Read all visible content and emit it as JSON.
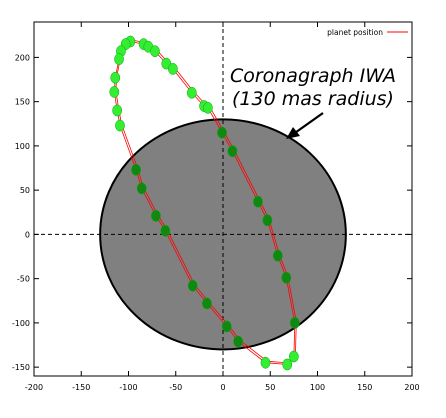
{
  "chart_data": {
    "type": "scatter",
    "title": "",
    "xlabel": "",
    "ylabel": "",
    "xlim": [
      -200,
      200
    ],
    "ylim": [
      -160,
      240
    ],
    "x_ticks": [
      -200,
      -150,
      -100,
      -50,
      0,
      50,
      100,
      150,
      200
    ],
    "y_ticks": [
      -150,
      -100,
      -50,
      0,
      50,
      100,
      150,
      200
    ],
    "grid": false,
    "legend_position": "top-right",
    "legend": [
      "planet position"
    ],
    "annotation": [
      "Coronagraph IWA",
      "(130 mas radius)"
    ],
    "mask": {
      "center": [
        0,
        0
      ],
      "radius": 130,
      "color": "#808080"
    },
    "colors": {
      "orbit_line": "#ff0000",
      "point_outside": "#33ee33",
      "point_inside": "#118811",
      "point_outline": "#00aa00"
    },
    "series": [
      {
        "name": "planet position",
        "points": [
          [
            -98,
            218
          ],
          [
            -103,
            215
          ],
          [
            -108,
            207
          ],
          [
            -110,
            198
          ],
          [
            -84,
            215
          ],
          [
            -79,
            212
          ],
          [
            -72,
            207
          ],
          [
            -60,
            193
          ],
          [
            -53,
            187
          ],
          [
            -33,
            160
          ],
          [
            -20,
            145
          ],
          [
            -16,
            143
          ],
          [
            -114,
            177
          ],
          [
            -115,
            161
          ],
          [
            -112,
            140
          ],
          [
            -109,
            123
          ],
          [
            -1,
            115
          ],
          [
            10,
            94
          ],
          [
            37,
            37
          ],
          [
            47,
            16
          ],
          [
            58,
            -24
          ],
          [
            67,
            -49
          ],
          [
            76,
            -100
          ],
          [
            -92,
            73
          ],
          [
            -86,
            52
          ],
          [
            -71,
            21
          ],
          [
            -61,
            4
          ],
          [
            -32,
            -58
          ],
          [
            -17,
            -78
          ],
          [
            4,
            -104
          ],
          [
            16,
            -121
          ],
          [
            45,
            -145
          ],
          [
            68,
            -147
          ],
          [
            75,
            -138
          ]
        ]
      }
    ]
  }
}
